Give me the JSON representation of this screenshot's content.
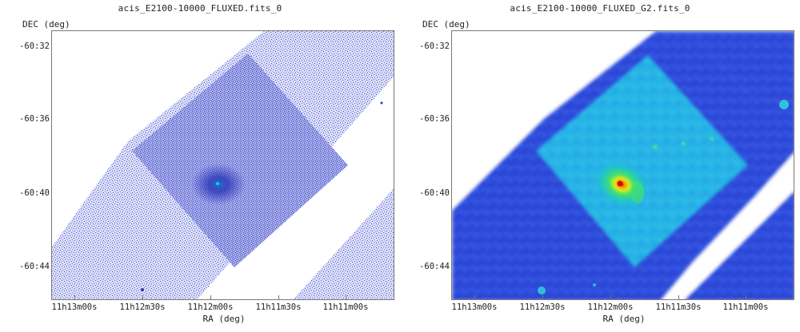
{
  "panels": [
    {
      "title": "acis_E2100-10000_FLUXED.fits_0",
      "ylabel": "DEC (deg)",
      "xlabel": "RA (deg)",
      "yticks": [
        "-60:32",
        "-60:36",
        "-60:40",
        "-60:44"
      ],
      "xticks": [
        "11h13m00s",
        "11h12m30s",
        "11h12m00s",
        "11h11m30s",
        "11h11m00s"
      ],
      "colormap": "white-to-blue speckle (raw counts)"
    },
    {
      "title": "acis_E2100-10000_FLUXED_G2.fits_0",
      "ylabel": "DEC (deg)",
      "xlabel": "RA (deg)",
      "yticks": [
        "-60:32",
        "-60:36",
        "-60:40",
        "-60:44"
      ],
      "xticks": [
        "11h13m00s",
        "11h12m30s",
        "11h12m00s",
        "11h11m30s",
        "11h11m00s"
      ],
      "colormap": "blue-cyan-green-yellow-red (smoothed)"
    }
  ],
  "colors": {
    "raw_light": "#c9ccf2",
    "raw_dark": "#2a33b8",
    "smooth_bg": "#2f4bdc",
    "smooth_chip": "#28b8e8",
    "smooth_peak": "#e00000"
  }
}
